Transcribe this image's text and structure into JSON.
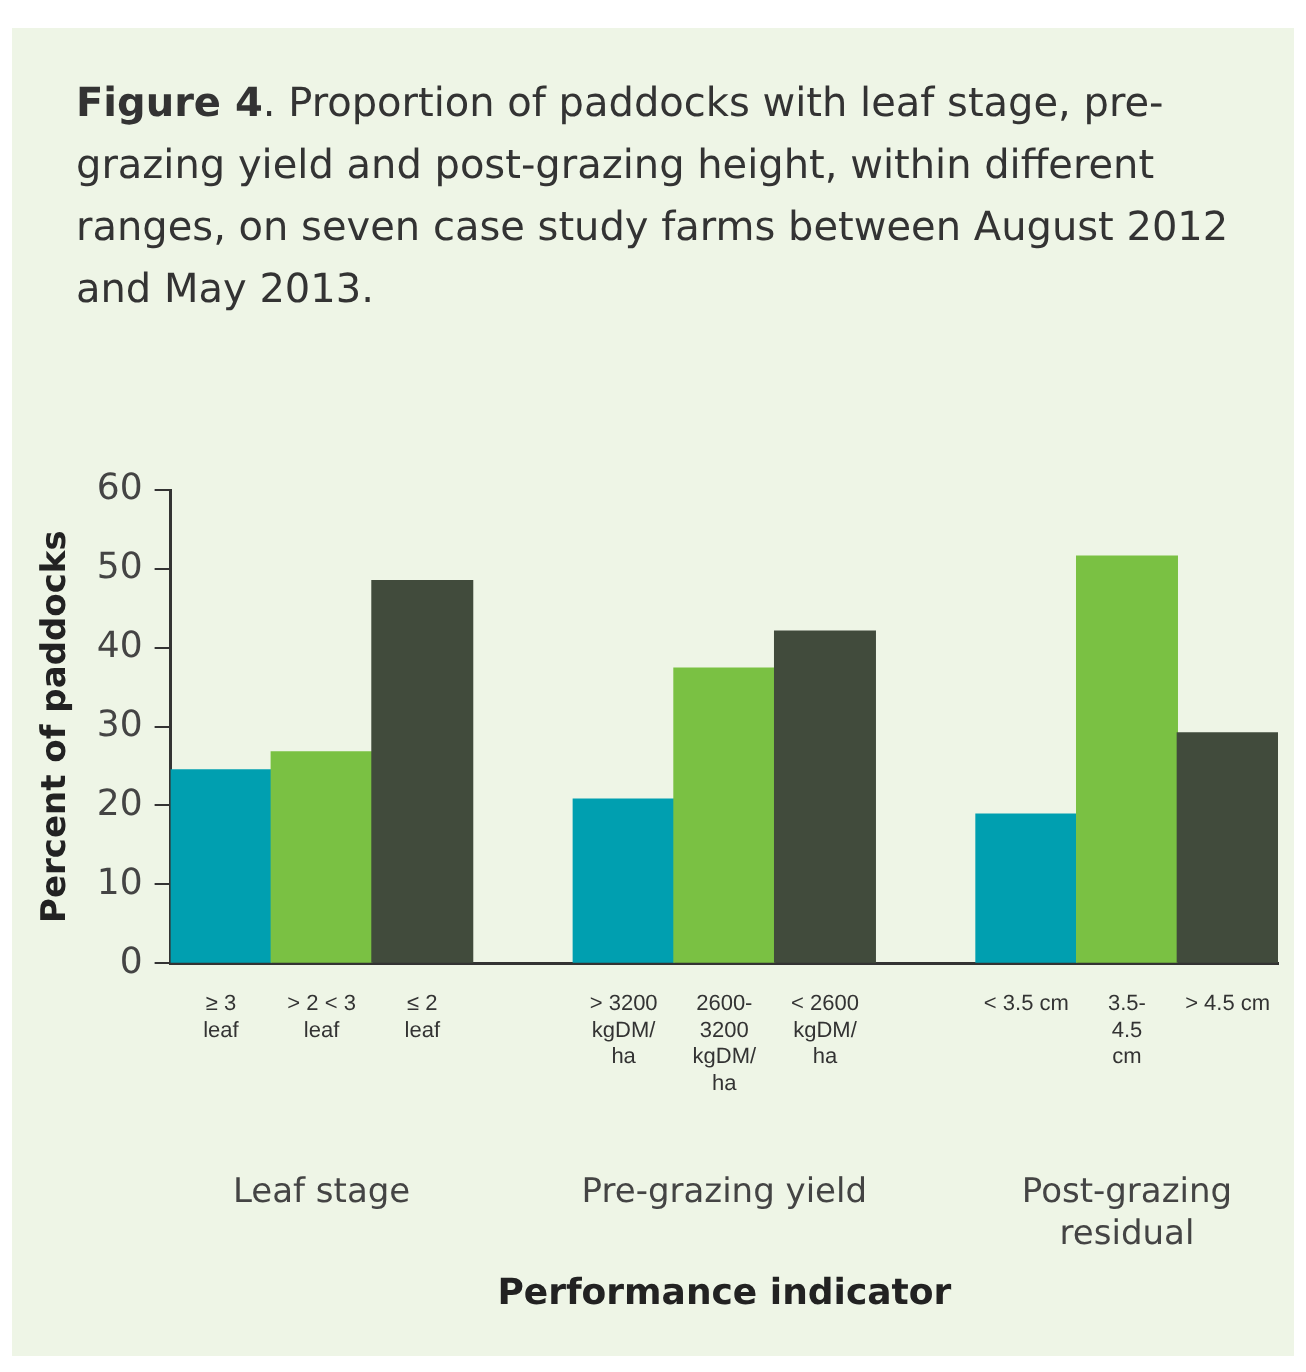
{
  "chart_data": {
    "type": "bar",
    "title": "Figure 4. Proportion of paddocks with leaf stage, pre-grazing yield and post-grazing height, within different ranges, on seven case study farms between August 2012 and May 2013.",
    "categories": [
      "≥ 3\nleaf",
      "> 2 < 3\nleaf",
      "≤ 2\nleaf",
      null,
      "> 3200\nkgDM/\nha",
      "2600-\n3200\nkgDM/\nha",
      "< 2600\nkgDM/\nha",
      null,
      "< 3.5 cm",
      "3.5-\n4.5\ncm",
      "> 4.5 cm"
    ],
    "values": [
      24.5,
      26.8,
      48.5,
      null,
      20.8,
      37.4,
      42.1,
      null,
      18.9,
      51.6,
      29.2
    ],
    "colors": [
      "#009fb0",
      "#7ac143",
      "#414b3c",
      null,
      "#009fb0",
      "#7ac143",
      "#414b3c",
      null,
      "#009fb0",
      "#7ac143",
      "#414b3c"
    ],
    "annotations": [
      "Leaf stage",
      "Pre-grazing yield",
      "Post-grazing residual"
    ],
    "xlabel": "Performance indicator",
    "ylabel": "Percent of paddocks",
    "ylim": [
      0,
      60
    ],
    "yticks": [
      0,
      10,
      20,
      30,
      40,
      50,
      60
    ],
    "grid": false,
    "legend": false
  }
}
